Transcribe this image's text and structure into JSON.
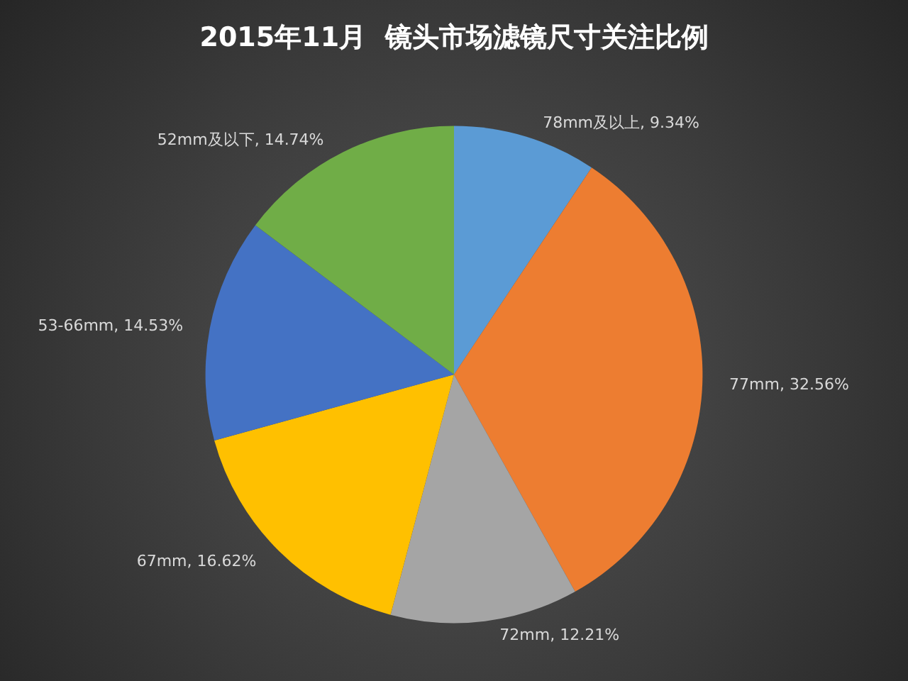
{
  "chart_data": {
    "type": "pie",
    "title": "2015年11月  镜头市场滤镜尺寸关注比例",
    "categories": [
      "78mm及以上",
      "77mm",
      "72mm",
      "67mm",
      "53-66mm",
      "52mm及以下"
    ],
    "values": [
      9.34,
      32.56,
      12.21,
      16.62,
      14.53,
      14.74
    ],
    "colors": [
      "#5b9bd5",
      "#ed7d31",
      "#a5a5a5",
      "#ffc000",
      "#4472c4",
      "#70ad47"
    ],
    "value_labels": [
      "9.34%",
      "32.56%",
      "12.21%",
      "16.62%",
      "14.53%",
      "14.74%"
    ]
  }
}
